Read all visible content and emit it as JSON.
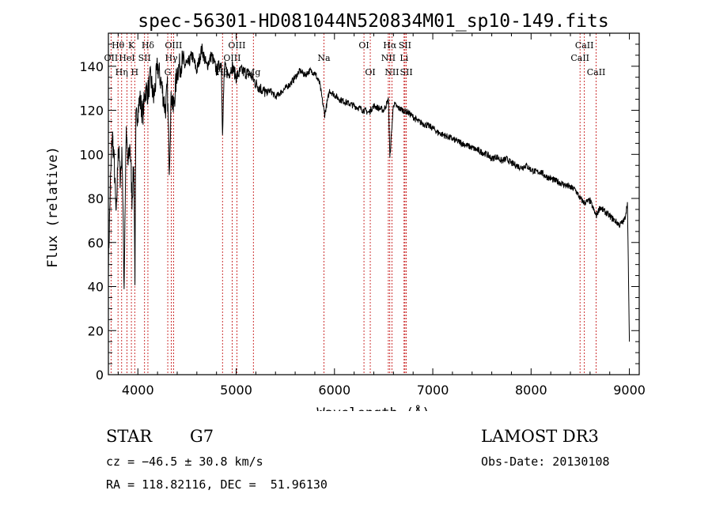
{
  "chart_data": {
    "type": "line",
    "title": "spec-56301-HD081044N520834M01_sp10-149.fits",
    "xlabel": "Wavelength (Å)",
    "ylabel": "Flux (relative)",
    "xlim": [
      3700,
      9100
    ],
    "ylim": [
      0,
      155
    ],
    "xticks": [
      4000,
      5000,
      6000,
      7000,
      8000,
      9000
    ],
    "yticks": [
      0,
      20,
      40,
      60,
      80,
      100,
      120,
      140
    ],
    "series": [
      {
        "name": "flux",
        "x": [
          3700,
          3720,
          3740,
          3760,
          3780,
          3800,
          3820,
          3840,
          3860,
          3880,
          3900,
          3920,
          3940,
          3960,
          3970,
          3980,
          4000,
          4020,
          4050,
          4080,
          4100,
          4130,
          4160,
          4200,
          4240,
          4280,
          4300,
          4320,
          4340,
          4360,
          4400,
          4450,
          4500,
          4550,
          4600,
          4650,
          4700,
          4750,
          4800,
          4850,
          4861,
          4880,
          4920,
          4960,
          5000,
          5050,
          5100,
          5150,
          5200,
          5250,
          5300,
          5350,
          5400,
          5450,
          5500,
          5550,
          5600,
          5650,
          5700,
          5750,
          5800,
          5850,
          5900,
          5950,
          6000,
          6050,
          6100,
          6150,
          6200,
          6250,
          6300,
          6350,
          6400,
          6450,
          6500,
          6550,
          6563,
          6600,
          6650,
          6700,
          6750,
          6800,
          6850,
          6900,
          6950,
          7000,
          7050,
          7100,
          7150,
          7200,
          7250,
          7300,
          7350,
          7400,
          7450,
          7500,
          7550,
          7600,
          7650,
          7700,
          7750,
          7800,
          7850,
          7900,
          7950,
          8000,
          8050,
          8100,
          8150,
          8200,
          8250,
          8300,
          8350,
          8400,
          8450,
          8498,
          8542,
          8600,
          8662,
          8700,
          8750,
          8800,
          8850,
          8900,
          8950,
          8980,
          9000
        ],
        "values": [
          50,
          85,
          110,
          95,
          70,
          105,
          90,
          100,
          40,
          110,
          95,
          105,
          80,
          95,
          45,
          115,
          120,
          125,
          118,
          130,
          128,
          135,
          125,
          140,
          132,
          120,
          130,
          95,
          128,
          120,
          138,
          142,
          140,
          145,
          138,
          148,
          140,
          145,
          138,
          142,
          108,
          140,
          136,
          140,
          135,
          138,
          137,
          136,
          132,
          130,
          128,
          129,
          126,
          128,
          130,
          132,
          135,
          138,
          136,
          138,
          137,
          132,
          118,
          129,
          127,
          125,
          124,
          123,
          122,
          121,
          120,
          119,
          122,
          121,
          120,
          125,
          98,
          123,
          121,
          120,
          119,
          117,
          115,
          114,
          113,
          112,
          110,
          109,
          108,
          107,
          106,
          105,
          104,
          103,
          102,
          101,
          100,
          98,
          99,
          97,
          98,
          96,
          95,
          94,
          95,
          93,
          92,
          92,
          90,
          89,
          88,
          87,
          86,
          85,
          84,
          80,
          78,
          79,
          72,
          76,
          74,
          72,
          70,
          68,
          70,
          78,
          15
        ]
      }
    ],
    "spectral_lines": [
      {
        "label": "Hθ",
        "wavelength": 3798,
        "row": 1
      },
      {
        "label": "K",
        "wavelength": 3934,
        "row": 1
      },
      {
        "label": "Hδ",
        "wavelength": 4102,
        "row": 1
      },
      {
        "label": "OII",
        "wavelength": 3727,
        "row": 2
      },
      {
        "label": "HeI",
        "wavelength": 3889,
        "row": 2
      },
      {
        "label": "SII",
        "wavelength": 4068,
        "row": 2
      },
      {
        "label": "Hη",
        "wavelength": 3835,
        "row": 3
      },
      {
        "label": "H",
        "wavelength": 3968,
        "row": 3
      },
      {
        "label": "OIII",
        "wavelength": 4363,
        "row": 1
      },
      {
        "label": "Hγ",
        "wavelength": 4340,
        "row": 2
      },
      {
        "label": "G",
        "wavelength": 4304,
        "row": 3
      },
      {
        "label": "OIII",
        "wavelength": 5007,
        "row": 1
      },
      {
        "label": "OIII",
        "wavelength": 4959,
        "row": 2
      },
      {
        "label": "Hβ",
        "wavelength": 4861,
        "row": 3
      },
      {
        "label": "Mg",
        "wavelength": 5175,
        "row": 3
      },
      {
        "label": "Na",
        "wavelength": 5893,
        "row": 2
      },
      {
        "label": "OI",
        "wavelength": 6300,
        "row": 1
      },
      {
        "label": "OI",
        "wavelength": 6364,
        "row": 3
      },
      {
        "label": "Hα",
        "wavelength": 6563,
        "row": 1
      },
      {
        "label": "SII",
        "wavelength": 6717,
        "row": 1
      },
      {
        "label": "NII",
        "wavelength": 6548,
        "row": 2
      },
      {
        "label": "Li",
        "wavelength": 6708,
        "row": 2
      },
      {
        "label": "NII",
        "wavelength": 6584,
        "row": 3
      },
      {
        "label": "SII",
        "wavelength": 6731,
        "row": 3
      },
      {
        "label": "CaII",
        "wavelength": 8542,
        "row": 1
      },
      {
        "label": "CaII",
        "wavelength": 8498,
        "row": 2
      },
      {
        "label": "CaII",
        "wavelength": 8662,
        "row": 3
      }
    ]
  },
  "info": {
    "object_type": "STAR",
    "subclass": "G7",
    "survey": "LAMOST DR3",
    "cz": "cz = −46.5 ± 30.8 km/s",
    "obs_date": "Obs-Date: 20130108",
    "coords": "RA = 118.82116, DEC =  51.96130"
  }
}
